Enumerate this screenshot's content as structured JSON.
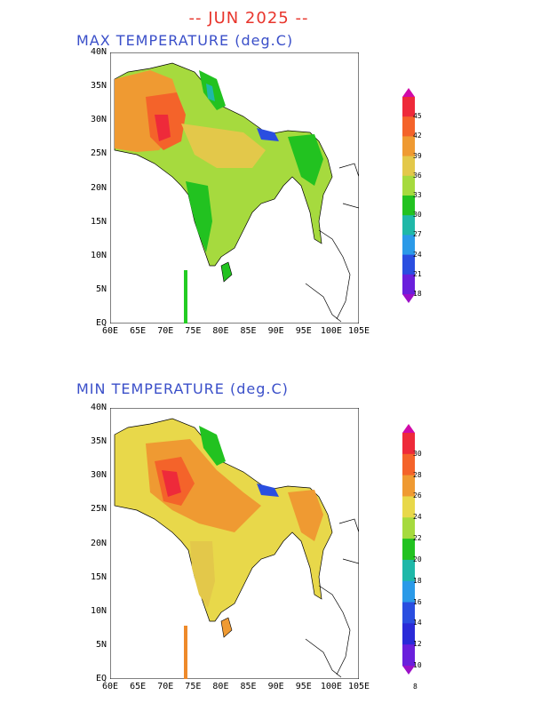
{
  "header": {
    "title": "-- JUN 2025 --"
  },
  "panels": [
    {
      "id": "max",
      "title": "MAX TEMPERATURE (deg.C)",
      "y_ticks": [
        "40N",
        "35N",
        "30N",
        "25N",
        "20N",
        "15N",
        "10N",
        "5N",
        "EQ"
      ],
      "x_ticks": [
        "60E",
        "65E",
        "70E",
        "75E",
        "80E",
        "85E",
        "90E",
        "95E",
        "100E",
        "105E"
      ],
      "colorbar": {
        "labels": [
          "45",
          "42",
          "39",
          "36",
          "33",
          "30",
          "27",
          "24",
          "21",
          "18"
        ],
        "colors": [
          "#d10aa8",
          "#ee2a3a",
          "#f4632a",
          "#ef9a32",
          "#e3c84a",
          "#a6da3e",
          "#22c220",
          "#1fb8a8",
          "#2b9ae8",
          "#2a4ee0",
          "#6a1fdc",
          "#9b10c8"
        ]
      },
      "marker_color": "#22cc22"
    },
    {
      "id": "min",
      "title": "MIN TEMPERATURE (deg.C)",
      "y_ticks": [
        "40N",
        "35N",
        "30N",
        "25N",
        "20N",
        "15N",
        "10N",
        "5N",
        "EQ"
      ],
      "x_ticks": [
        "60E",
        "65E",
        "70E",
        "75E",
        "80E",
        "85E",
        "90E",
        "95E",
        "100E",
        "105E"
      ],
      "colorbar": {
        "labels": [
          "30",
          "28",
          "26",
          "24",
          "22",
          "20",
          "18",
          "16",
          "14",
          "12",
          "10",
          "8"
        ],
        "colors": [
          "#d10aa8",
          "#ee2a3a",
          "#f4632a",
          "#ef9a32",
          "#e8d84a",
          "#a6da3e",
          "#22c220",
          "#1fb8a8",
          "#2b9ae8",
          "#2a4ee0",
          "#2a2ad8",
          "#6a1fdc",
          "#9b10c8"
        ]
      },
      "marker_color": "#ee8a2a"
    }
  ]
}
